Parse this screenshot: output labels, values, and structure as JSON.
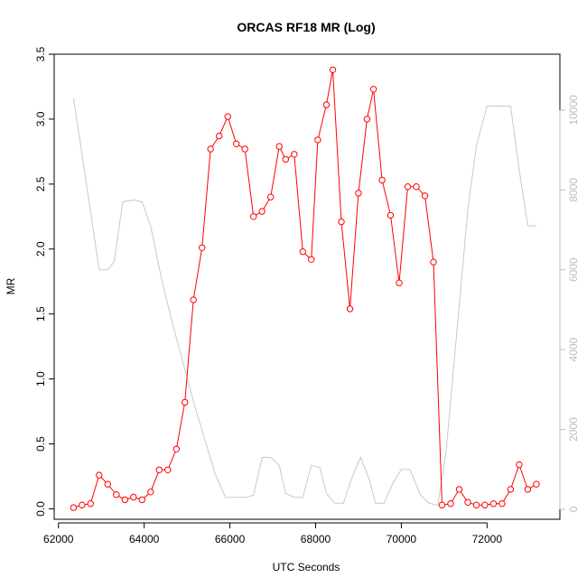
{
  "chart_data": {
    "type": "line",
    "title": "ORCAS RF18 MR (Log)",
    "xlabel": "UTC Seconds",
    "ylabel": "MR",
    "y2label": "",
    "xlim": [
      61900,
      73700
    ],
    "ylim": [
      -0.08,
      3.5
    ],
    "y2lim": [
      -250,
      11400
    ],
    "x_ticks": [
      62000,
      64000,
      66000,
      68000,
      70000,
      72000
    ],
    "x_tick_labels": [
      "62000",
      "64000",
      "66000",
      "68000",
      "70000",
      "72000"
    ],
    "y_ticks": [
      0.0,
      0.5,
      1.0,
      1.5,
      2.0,
      2.5,
      3.0,
      3.5
    ],
    "y_tick_labels": [
      "0.0",
      "0.5",
      "1.0",
      "1.5",
      "2.0",
      "2.5",
      "3.0",
      "3.5"
    ],
    "y2_ticks": [
      0,
      2000,
      4000,
      6000,
      8000,
      10000
    ],
    "y2_tick_labels": [
      "0",
      "2000",
      "4000",
      "6000",
      "8000",
      "10000"
    ],
    "colors": {
      "mr": "#ff0000",
      "secondary": "#c8c8c8",
      "axis": "#000000",
      "right_axis": "#bdbdbd"
    },
    "series": [
      {
        "name": "",
        "color": "#ff0000",
        "marker": "open-circle",
        "axis": "left",
        "x": [
          62350,
          62550,
          62750,
          62950,
          63150,
          63350,
          63550,
          63750,
          63950,
          64150,
          64350,
          64550,
          64750,
          64950,
          65150,
          65350,
          65550,
          65750,
          65950,
          66150,
          66350,
          66550,
          66750,
          66950,
          67150,
          67300,
          67500,
          67700,
          67900,
          68050,
          68250,
          68400,
          68600,
          68800,
          69000,
          69200,
          69350,
          69550,
          69750,
          69950,
          70150,
          70350,
          70550,
          70750,
          70950,
          71150,
          71350,
          71550,
          71750,
          71950,
          72150,
          72350,
          72550,
          72750,
          72950,
          73150
        ],
        "y": [
          0.01,
          0.03,
          0.04,
          0.26,
          0.19,
          0.11,
          0.07,
          0.09,
          0.07,
          0.13,
          0.3,
          0.3,
          0.46,
          0.82,
          1.61,
          2.01,
          2.77,
          2.87,
          3.02,
          2.81,
          2.77,
          2.25,
          2.29,
          2.4,
          2.79,
          2.69,
          2.73,
          1.98,
          1.92,
          2.84,
          3.11,
          3.38,
          2.21,
          1.54,
          2.43,
          3.0,
          3.23,
          2.53,
          2.26,
          1.74,
          2.48,
          2.48,
          2.41,
          1.9,
          0.03,
          0.04,
          0.15,
          0.05,
          0.03,
          0.03,
          0.04,
          0.04,
          0.15,
          0.34,
          0.15,
          0.19
        ]
      },
      {
        "name": "",
        "color": "#c8c8c8",
        "marker": "none",
        "axis": "right",
        "x": [
          62350,
          62550,
          62950,
          63150,
          63300,
          63500,
          63750,
          63950,
          64150,
          64400,
          64650,
          64900,
          65150,
          65400,
          65650,
          65900,
          66150,
          66350,
          66550,
          66750,
          66950,
          67150,
          67300,
          67500,
          67700,
          67900,
          68100,
          68250,
          68450,
          68650,
          68850,
          69050,
          69250,
          69400,
          69600,
          69800,
          70000,
          70200,
          70450,
          70650,
          70850,
          71050,
          71300,
          71550,
          71750,
          72000,
          72200,
          72350,
          72550,
          72750,
          72950,
          73150
        ],
        "y": [
          10300,
          8900,
          6000,
          6000,
          6200,
          7700,
          7750,
          7700,
          7100,
          5800,
          4700,
          3700,
          2700,
          1800,
          900,
          300,
          300,
          300,
          350,
          1300,
          1300,
          1100,
          400,
          300,
          300,
          1100,
          1050,
          400,
          150,
          150,
          800,
          1300,
          750,
          150,
          150,
          650,
          1000,
          1000,
          350,
          150,
          100,
          1500,
          4500,
          7500,
          9100,
          10100,
          10100,
          10100,
          10100,
          8500,
          7100,
          7100
        ]
      }
    ]
  }
}
